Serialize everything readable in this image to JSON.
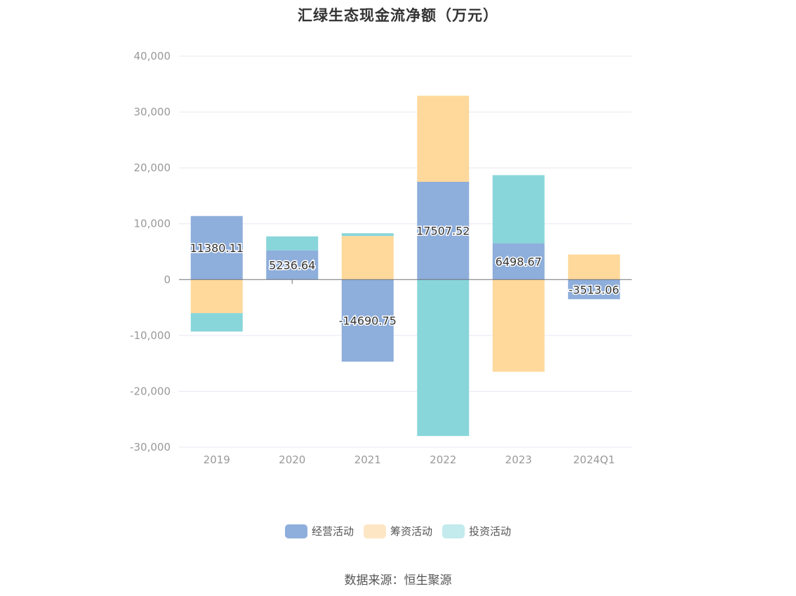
{
  "colors": {
    "operating": "#8eaedb",
    "financing": "#fed99b",
    "investing": "#88d6da",
    "operating_legend": "#8eaedb",
    "financing_legend": "#fde6c4",
    "investing_legend": "#c3eaed",
    "grid": "#e6e8f2",
    "axis_text": "#999999",
    "zero_line": "#6e7079"
  },
  "chart_data": {
    "type": "bar",
    "stacked": true,
    "title": "汇绿生态现金流净额（万元）",
    "categories": [
      "2019",
      "2020",
      "2021",
      "2022",
      "2023",
      "2024Q1"
    ],
    "ylim": [
      -30000,
      40000
    ],
    "yticks": [
      -30000,
      -20000,
      -10000,
      0,
      10000,
      20000,
      30000,
      40000
    ],
    "ytick_labels": [
      "-30,000",
      "-20,000",
      "-10,000",
      "0",
      "10,000",
      "20,000",
      "30,000",
      "40,000"
    ],
    "grid": true,
    "legend_position": "bottom",
    "series": [
      {
        "name": "经营活动",
        "color_key": "operating",
        "values": [
          11380.11,
          5236.64,
          -14690.75,
          17507.52,
          6498.67,
          -3513.06
        ],
        "data_labels": [
          "11380.11",
          "5236.64",
          "-14690.75",
          "17507.52",
          "6498.67",
          "-3513.06"
        ]
      },
      {
        "name": "筹资活动",
        "color_key": "financing",
        "values": [
          -6000,
          0,
          7800,
          15400,
          -16500,
          4500
        ]
      },
      {
        "name": "投资活动",
        "color_key": "investing",
        "values": [
          -3300,
          2500,
          500,
          -28000,
          12200,
          0
        ]
      }
    ]
  },
  "legend": {
    "items": [
      {
        "label": "经营活动",
        "color_key": "operating_legend"
      },
      {
        "label": "筹资活动",
        "color_key": "financing_legend"
      },
      {
        "label": "投资活动",
        "color_key": "investing_legend"
      }
    ]
  },
  "source_text": "数据来源：恒生聚源"
}
